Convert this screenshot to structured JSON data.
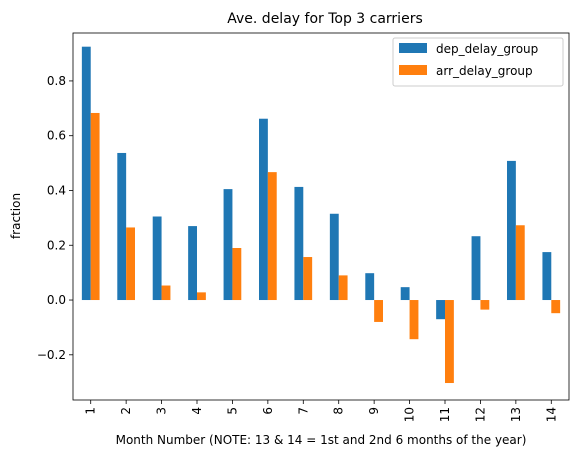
{
  "chart_data": {
    "type": "bar",
    "title": "Ave. delay for Top 3 carriers",
    "xlabel": "Month Number (NOTE: 13 & 14 = 1st and 2nd 6 months of the year)",
    "ylabel": "fraction",
    "categories": [
      "1",
      "2",
      "3",
      "4",
      "5",
      "6",
      "7",
      "8",
      "9",
      "10",
      "11",
      "12",
      "13",
      "14"
    ],
    "series": [
      {
        "name": "dep_delay_group",
        "color": "#1f77b4",
        "values": [
          0.925,
          0.537,
          0.305,
          0.27,
          0.405,
          0.662,
          0.413,
          0.315,
          0.098,
          0.047,
          -0.07,
          0.233,
          0.508,
          0.175
        ]
      },
      {
        "name": "arr_delay_group",
        "color": "#ff7f0e",
        "values": [
          0.683,
          0.265,
          0.053,
          0.028,
          0.19,
          0.467,
          0.157,
          0.09,
          -0.08,
          -0.143,
          -0.303,
          -0.035,
          0.273,
          -0.048
        ]
      }
    ],
    "ylim": [
      -0.365,
      0.975
    ],
    "yticks": [
      -0.2,
      0.0,
      0.2,
      0.4,
      0.6,
      0.8
    ],
    "ytick_labels": [
      "−0.2",
      "0.0",
      "0.2",
      "0.4",
      "0.6",
      "0.8"
    ],
    "grid": false,
    "legend_position": "top-right"
  }
}
